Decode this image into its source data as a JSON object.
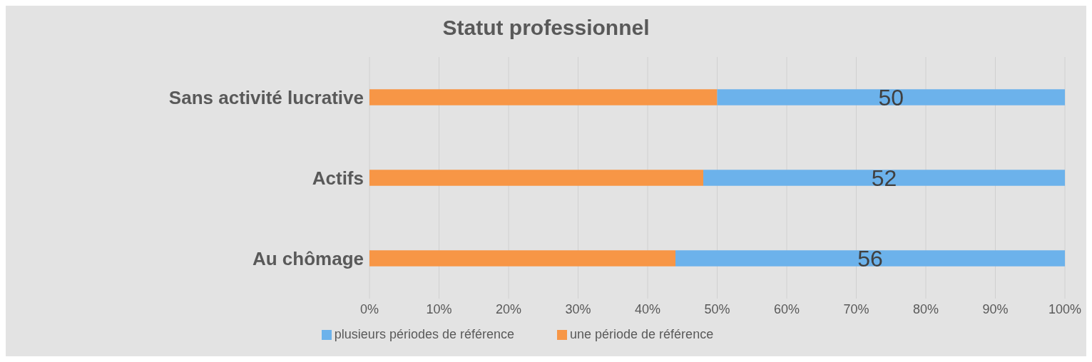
{
  "chart_data": {
    "type": "bar",
    "title": "Statut professionnel",
    "orientation": "horizontal",
    "stacked": true,
    "categories": [
      "Sans activité lucrative",
      "Actifs",
      "Au chômage"
    ],
    "series": [
      {
        "name": "une période de référence",
        "color": "#f79646",
        "values": [
          50,
          48,
          44
        ]
      },
      {
        "name": "plusieurs périodes de référence",
        "color": "#6cb2eb",
        "values": [
          50,
          52,
          56
        ],
        "value_labels": [
          "50",
          "52",
          "56"
        ]
      }
    ],
    "xlim": [
      0,
      100
    ],
    "xticks": [
      {
        "value": 0,
        "label": "0%"
      },
      {
        "value": 10,
        "label": "10%"
      },
      {
        "value": 20,
        "label": "20%"
      },
      {
        "value": 30,
        "label": "30%"
      },
      {
        "value": 40,
        "label": "40%"
      },
      {
        "value": 50,
        "label": "50%"
      },
      {
        "value": 60,
        "label": "60%"
      },
      {
        "value": 70,
        "label": "70%"
      },
      {
        "value": 80,
        "label": "80%"
      },
      {
        "value": 90,
        "label": "90%"
      },
      {
        "value": 100,
        "label": "100%"
      }
    ],
    "grid": "x",
    "legend": "bottom"
  }
}
